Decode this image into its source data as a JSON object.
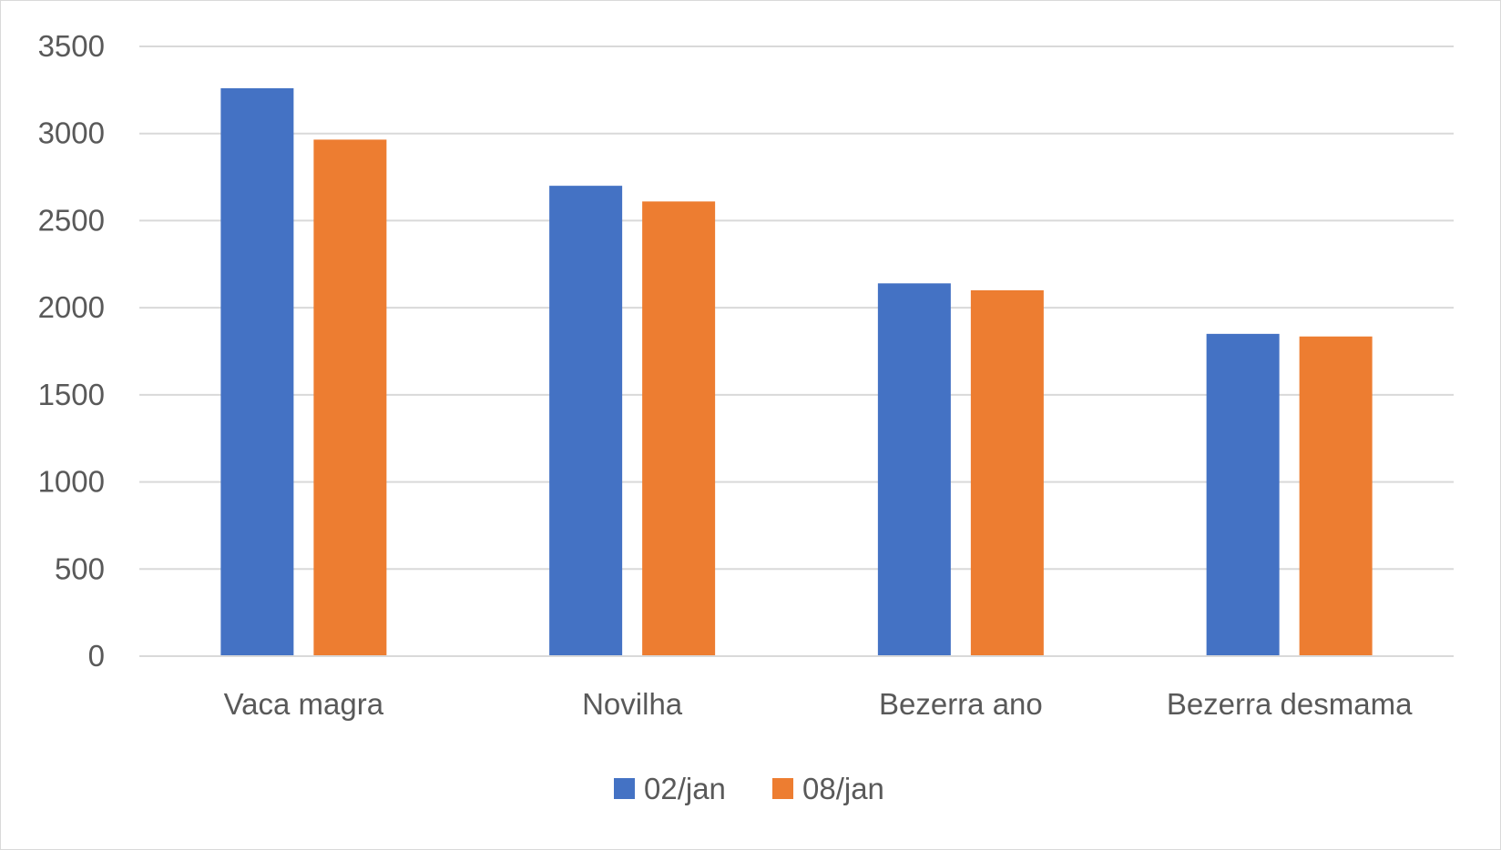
{
  "chart_data": {
    "type": "bar",
    "categories": [
      "Vaca magra",
      "Novilha",
      "Bezerra ano",
      "Bezerra desmama"
    ],
    "series": [
      {
        "name": "02/jan",
        "color": "#4472c4",
        "values": [
          3260,
          2700,
          2140,
          1850
        ]
      },
      {
        "name": "08/jan",
        "color": "#ed7d31",
        "values": [
          2965,
          2610,
          2100,
          1835
        ]
      }
    ],
    "yticks": [
      "0",
      "500",
      "1000",
      "1500",
      "2000",
      "2500",
      "3000",
      "3500"
    ],
    "ylim": [
      0,
      3500
    ],
    "grid": true,
    "legend_position": "bottom"
  }
}
